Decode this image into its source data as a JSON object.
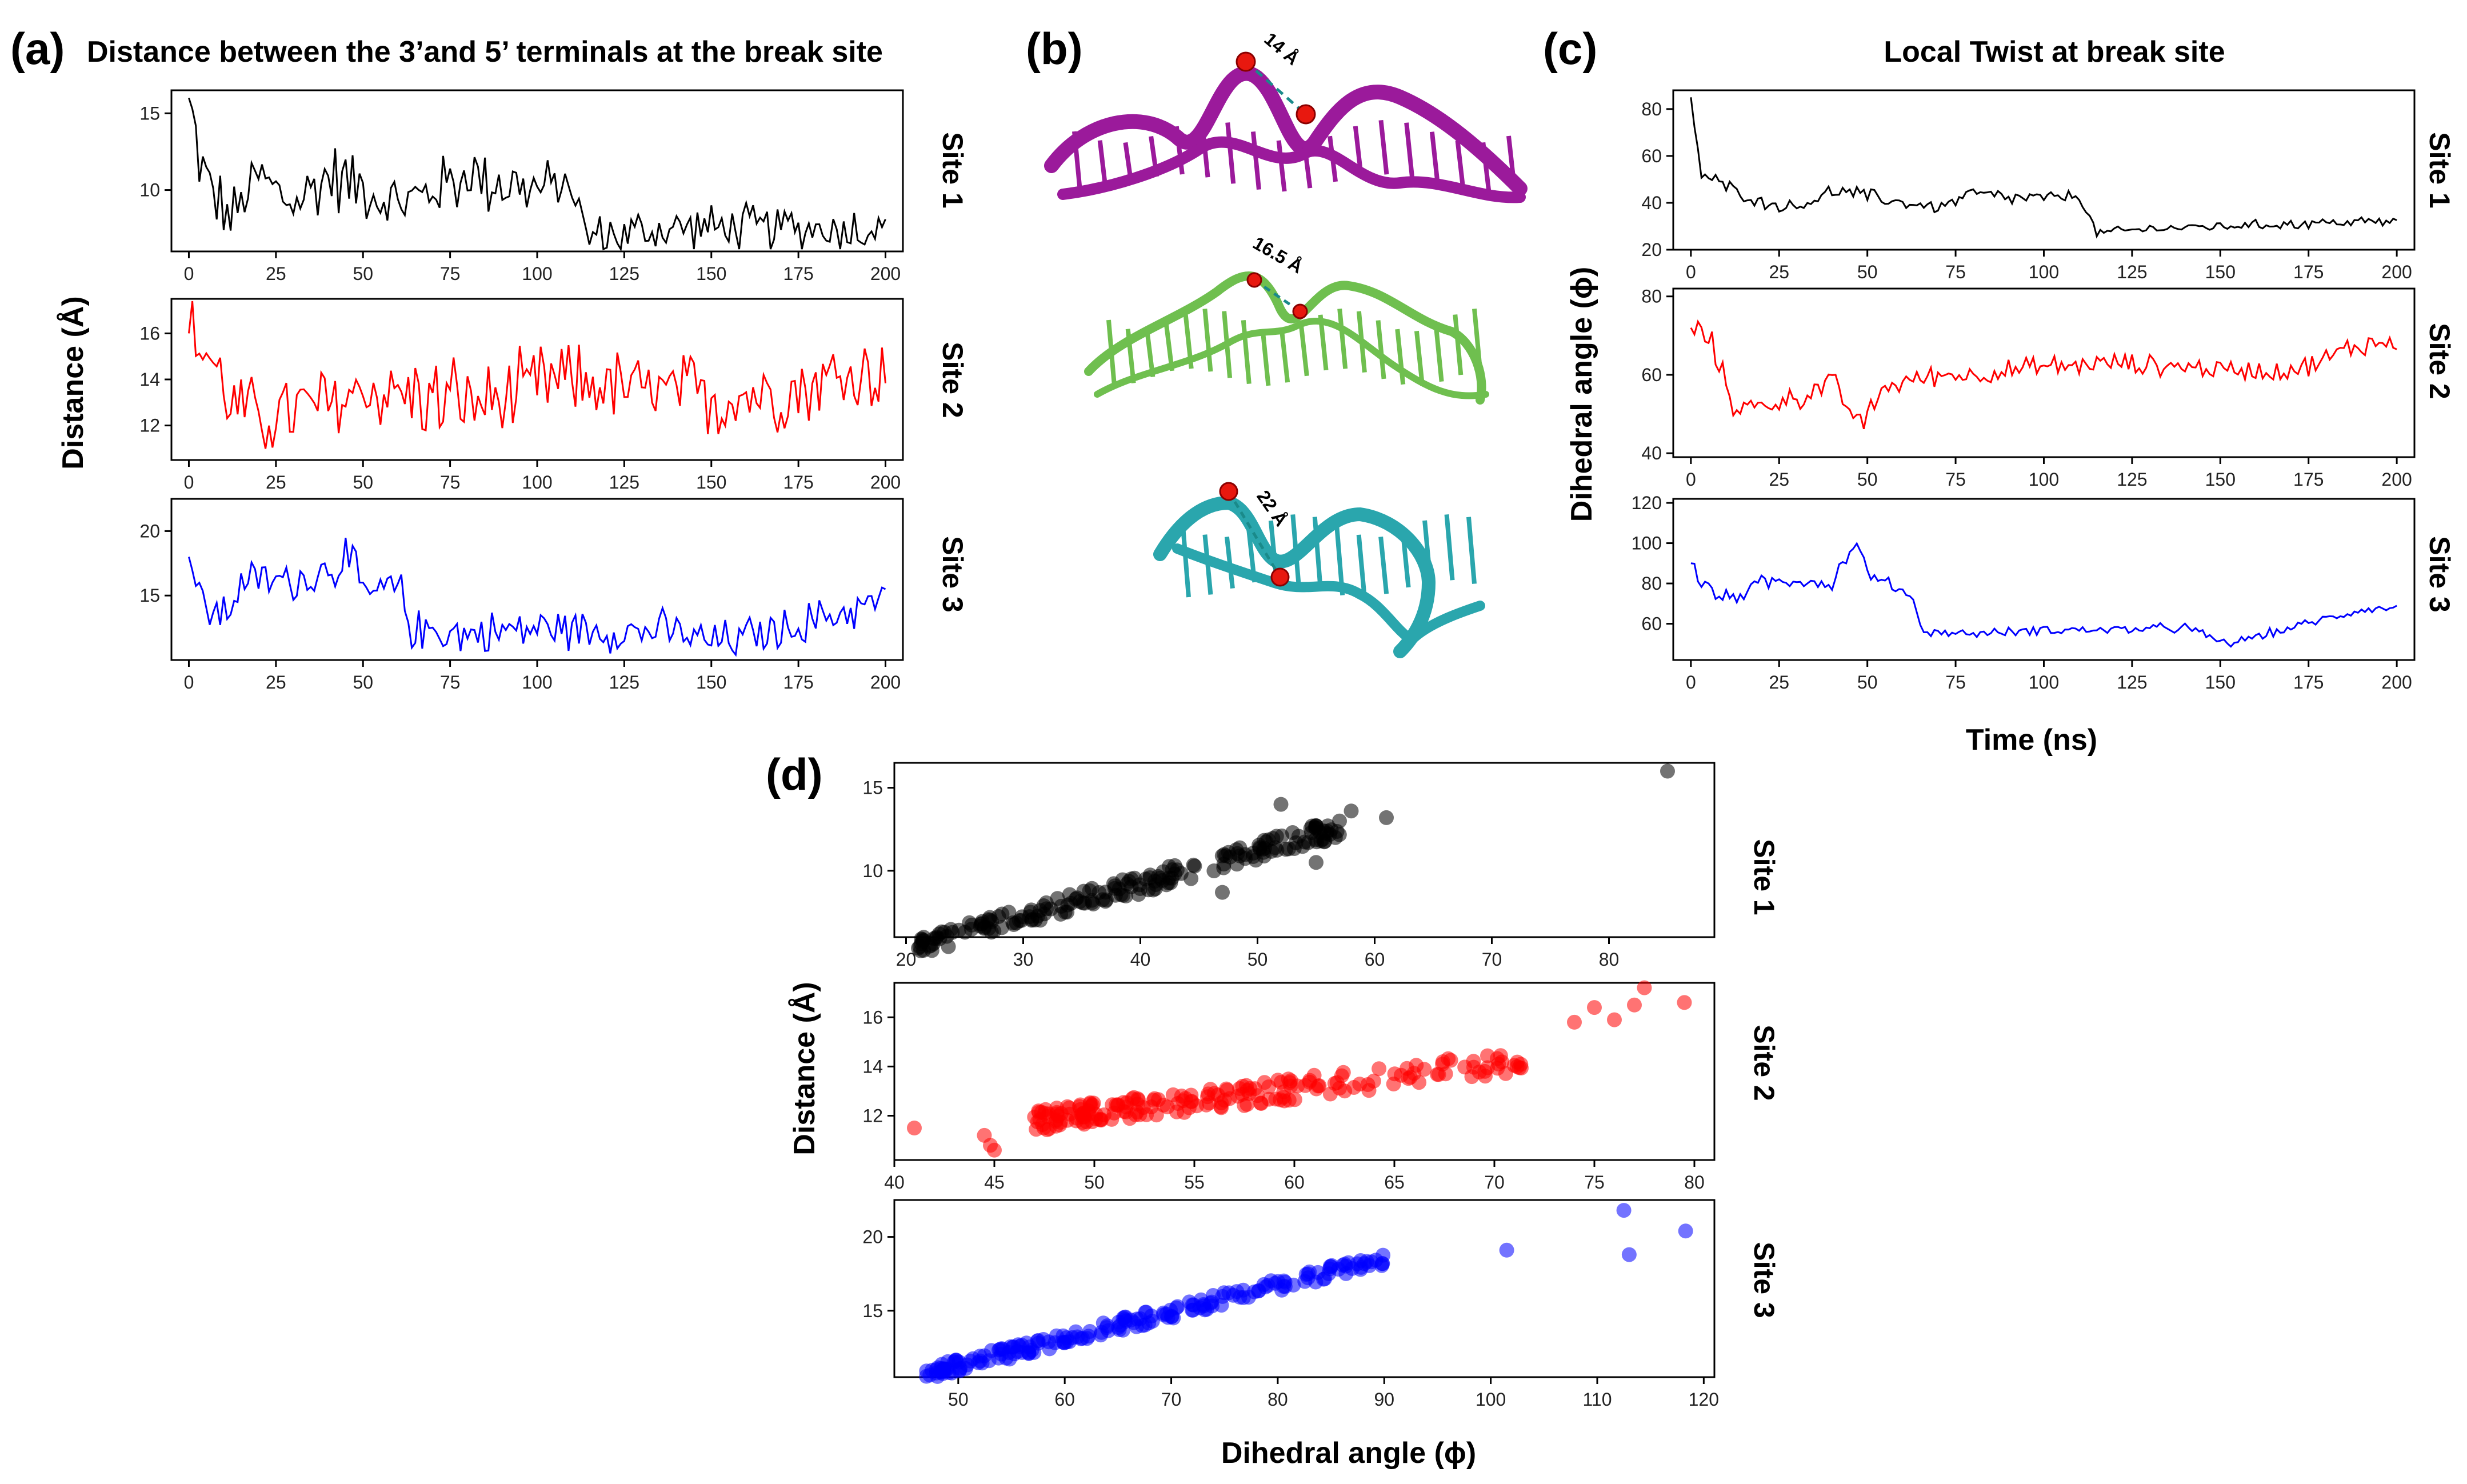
{
  "panel_labels": {
    "a": "(a)",
    "b": "(b)",
    "c": "(c)",
    "d": "(d)"
  },
  "titles": {
    "a": "Distance between the 3’and 5’ terminals at the break site",
    "c": "Local Twist at break site"
  },
  "axis_labels": {
    "a_y": "Distance (Å)",
    "c_y": "Dihedral angle (ϕ)",
    "c_x": "Time (ns)",
    "d_y": "Distance (Å)",
    "d_x": "Dihedral angle (ϕ)"
  },
  "sites": [
    "Site 1",
    "Site 2",
    "Site 3"
  ],
  "structures": {
    "colors": [
      "#9b1a9b",
      "#6fbf4f",
      "#2aa6ad"
    ],
    "distance_labels": [
      "14 Å",
      "16.5 Å",
      "22 Å"
    ]
  },
  "colors": {
    "site1": "#000000",
    "site2": "#ff0000",
    "site3": "#0000ff"
  },
  "chart_data": [
    {
      "type": "line",
      "panel": "a",
      "title": "Distance between the 3’and 5’ terminals at the break site",
      "ylabel": "Distance (Å)",
      "x_ticks": [
        0,
        25,
        50,
        75,
        100,
        125,
        150,
        175,
        200
      ],
      "series": [
        {
          "name": "Site 1",
          "color": "#000000",
          "ylim": [
            6,
            16.5
          ],
          "yticks": [
            10,
            15
          ],
          "segments": [
            [
              0,
              16,
              4
            ],
            [
              4,
              11,
              8
            ],
            [
              12,
              8,
              6
            ],
            [
              20,
              11,
              6
            ],
            [
              30,
              9,
              6
            ],
            [
              40,
              11,
              8
            ],
            [
              52,
              10,
              6
            ],
            [
              60,
              9,
              6
            ],
            [
              70,
              10,
              6
            ],
            [
              80,
              11,
              7
            ],
            [
              90,
              10.5,
              7
            ],
            [
              100,
              10,
              6
            ],
            [
              110,
              10.5,
              4
            ],
            [
              114,
              7,
              4
            ],
            [
              120,
              7,
              5
            ],
            [
              140,
              7.5,
              5
            ],
            [
              160,
              7.5,
              5
            ],
            [
              180,
              7.5,
              5
            ],
            [
              200,
              7.5,
              5
            ]
          ]
        },
        {
          "name": "Site 2",
          "color": "#ff0000",
          "ylim": [
            10.5,
            17.5
          ],
          "yticks": [
            12,
            14,
            16
          ],
          "segments": [
            [
              0,
              16,
              6
            ],
            [
              6,
              15,
              5
            ],
            [
              12,
              13,
              5
            ],
            [
              20,
              12.3,
              5
            ],
            [
              30,
              12.6,
              6
            ],
            [
              40,
              12.8,
              6
            ],
            [
              50,
              13.6,
              5
            ],
            [
              60,
              13.4,
              5
            ],
            [
              70,
              13.2,
              6
            ],
            [
              80,
              13,
              6
            ],
            [
              90,
              13,
              5
            ],
            [
              100,
              13.7,
              6
            ],
            [
              110,
              14,
              5
            ],
            [
              130,
              13.5,
              5
            ],
            [
              150,
              13.2,
              6
            ],
            [
              170,
              13.5,
              5
            ],
            [
              185,
              14,
              6
            ],
            [
              200,
              14.5,
              5
            ]
          ]
        },
        {
          "name": "Site 3",
          "color": "#0000ff",
          "ylim": [
            10,
            22.5
          ],
          "yticks": [
            15,
            20
          ],
          "segments": [
            [
              0,
              18,
              5
            ],
            [
              4,
              14,
              6
            ],
            [
              10,
              13.5,
              6
            ],
            [
              15,
              16,
              5
            ],
            [
              25,
              16.2,
              5
            ],
            [
              35,
              16.3,
              5
            ],
            [
              45,
              18,
              6
            ],
            [
              50,
              15,
              6
            ],
            [
              60,
              15.5,
              6
            ],
            [
              64,
              12.5,
              5
            ],
            [
              80,
              12,
              5
            ],
            [
              100,
              12.5,
              5
            ],
            [
              120,
              12.3,
              5
            ],
            [
              140,
              12.2,
              5
            ],
            [
              150,
              11.3,
              5
            ],
            [
              170,
              12.3,
              5
            ],
            [
              185,
              13.5,
              5
            ],
            [
              200,
              14.8,
              5
            ]
          ]
        }
      ]
    },
    {
      "type": "line",
      "panel": "c",
      "title": "Local Twist at break site",
      "xlabel": "Time (ns)",
      "ylabel": "Dihedral angle (ϕ)",
      "x_ticks": [
        0,
        25,
        50,
        75,
        100,
        125,
        150,
        175,
        200
      ],
      "series": [
        {
          "name": "Site 1",
          "color": "#000000",
          "ylim": [
            20,
            88
          ],
          "yticks": [
            20,
            40,
            60,
            80
          ],
          "segments": [
            [
              0,
              85,
              10
            ],
            [
              3,
              52,
              10
            ],
            [
              10,
              47,
              10
            ],
            [
              20,
              40,
              8
            ],
            [
              30,
              38,
              8
            ],
            [
              40,
              45,
              10
            ],
            [
              50,
              43,
              10
            ],
            [
              60,
              40,
              8
            ],
            [
              70,
              38,
              8
            ],
            [
              80,
              44,
              10
            ],
            [
              90,
              42,
              10
            ],
            [
              100,
              42,
              8
            ],
            [
              110,
              43,
              8
            ],
            [
              115,
              27,
              6
            ],
            [
              130,
              29,
              6
            ],
            [
              150,
              30,
              6
            ],
            [
              170,
              31,
              7
            ],
            [
              190,
              32,
              7
            ],
            [
              200,
              32,
              6
            ]
          ]
        },
        {
          "name": "Site 2",
          "color": "#ff0000",
          "ylim": [
            39,
            82
          ],
          "yticks": [
            40,
            60,
            80
          ],
          "segments": [
            [
              0,
              72,
              12
            ],
            [
              6,
              68,
              10
            ],
            [
              12,
              52,
              8
            ],
            [
              20,
              52,
              8
            ],
            [
              30,
              54,
              9
            ],
            [
              40,
              58,
              10
            ],
            [
              48,
              47,
              10
            ],
            [
              55,
              57,
              8
            ],
            [
              70,
              60,
              8
            ],
            [
              80,
              60,
              8
            ],
            [
              100,
              62,
              9
            ],
            [
              120,
              63,
              8
            ],
            [
              140,
              62,
              8
            ],
            [
              160,
              61,
              8
            ],
            [
              175,
              62,
              9
            ],
            [
              190,
              68,
              10
            ],
            [
              200,
              68,
              10
            ]
          ]
        },
        {
          "name": "Site 3",
          "color": "#0000ff",
          "ylim": [
            42,
            122
          ],
          "yticks": [
            60,
            80,
            100,
            120
          ],
          "segments": [
            [
              0,
              90,
              18
            ],
            [
              3,
              80,
              16
            ],
            [
              10,
              72,
              14
            ],
            [
              20,
              80,
              12
            ],
            [
              30,
              82,
              12
            ],
            [
              40,
              80,
              12
            ],
            [
              46,
              100,
              14
            ],
            [
              52,
              82,
              12
            ],
            [
              62,
              75,
              10
            ],
            [
              66,
              56,
              6
            ],
            [
              80,
              55,
              6
            ],
            [
              100,
              57,
              7
            ],
            [
              120,
              57,
              7
            ],
            [
              140,
              58,
              8
            ],
            [
              152,
              50,
              6
            ],
            [
              170,
              58,
              7
            ],
            [
              190,
              67,
              6
            ],
            [
              200,
              68,
              5
            ]
          ]
        }
      ]
    },
    {
      "type": "scatter",
      "panel": "d",
      "xlabel": "Dihedral angle (ϕ)",
      "ylabel": "Distance (Å)",
      "series": [
        {
          "name": "Site 1",
          "color": "#000000",
          "xlim": [
            19,
            89
          ],
          "ylim": [
            6,
            16.5
          ],
          "xticks": [
            20,
            30,
            40,
            50,
            60,
            70,
            80
          ],
          "yticks": [
            10,
            15
          ],
          "fit": {
            "slope": 0.2,
            "intercept": 1.2,
            "x_range": [
              21,
              57
            ],
            "noise": 0.6
          },
          "outliers": [
            [
              85,
              16
            ],
            [
              58,
              13.6
            ],
            [
              61,
              13.2
            ],
            [
              57,
              13
            ],
            [
              55,
              10.5
            ],
            [
              53,
              12.3
            ],
            [
              52,
              14
            ],
            [
              47,
              8.7
            ]
          ]
        },
        {
          "name": "Site 2",
          "color": "#ff0000",
          "xlim": [
            40,
            81
          ],
          "ylim": [
            10.2,
            17.4
          ],
          "xticks": [
            40,
            45,
            50,
            55,
            60,
            65,
            70,
            75,
            80
          ],
          "yticks": [
            12,
            14,
            16
          ],
          "fit": {
            "slope": 0.1,
            "intercept": 7.1,
            "x_range": [
              47,
              72
            ],
            "noise": 0.45
          },
          "outliers": [
            [
              41,
              11.5
            ],
            [
              44.5,
              11.2
            ],
            [
              44.8,
              10.8
            ],
            [
              45,
              10.6
            ],
            [
              75,
              16.4
            ],
            [
              76,
              15.9
            ],
            [
              77,
              16.5
            ],
            [
              77.5,
              17.2
            ],
            [
              79.5,
              16.6
            ],
            [
              74,
              15.8
            ]
          ]
        },
        {
          "name": "Site 3",
          "color": "#0000ff",
          "xlim": [
            44,
            121
          ],
          "ylim": [
            10.5,
            22.5
          ],
          "xticks": [
            50,
            60,
            70,
            80,
            90,
            100,
            110,
            120
          ],
          "yticks": [
            15,
            20
          ],
          "fit": {
            "slope": 0.18,
            "intercept": 2.3,
            "x_range": [
              47,
              90
            ],
            "noise": 0.45
          },
          "outliers": [
            [
              101.5,
              19.1
            ],
            [
              112.5,
              21.8
            ],
            [
              113,
              18.8
            ],
            [
              118.3,
              20.4
            ]
          ]
        }
      ]
    }
  ]
}
